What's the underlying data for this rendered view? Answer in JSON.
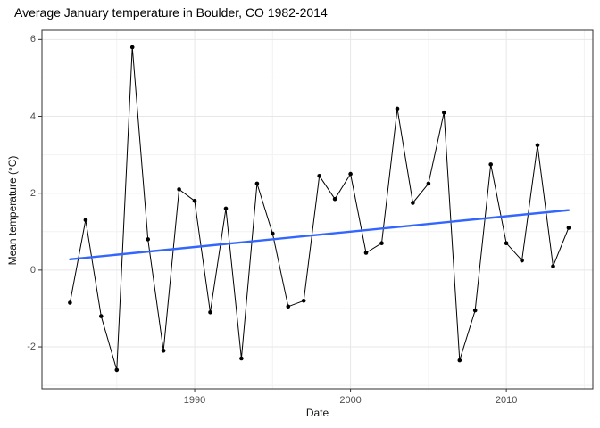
{
  "chart_data": {
    "type": "line",
    "title": "Average January temperature in Boulder, CO 1982-2014",
    "xlabel": "Date",
    "ylabel": "Mean temperature (°C)",
    "x": [
      1982,
      1983,
      1984,
      1985,
      1986,
      1987,
      1988,
      1989,
      1990,
      1991,
      1992,
      1993,
      1994,
      1995,
      1996,
      1997,
      1998,
      1999,
      2000,
      2001,
      2002,
      2003,
      2004,
      2005,
      2006,
      2007,
      2008,
      2009,
      2010,
      2011,
      2012,
      2013,
      2014
    ],
    "values": [
      -0.85,
      1.3,
      -1.2,
      -2.6,
      5.8,
      0.8,
      -2.1,
      2.1,
      1.8,
      -1.1,
      1.6,
      -2.3,
      2.25,
      0.95,
      -0.95,
      -0.8,
      2.45,
      1.85,
      2.5,
      0.45,
      0.7,
      4.2,
      1.75,
      2.25,
      4.1,
      -2.35,
      -1.05,
      2.75,
      0.7,
      0.25,
      3.25,
      0.1,
      1.1
    ],
    "trend_line": {
      "name": "linear-trend",
      "x": [
        1982,
        2014
      ],
      "y": [
        0.28,
        1.56
      ]
    },
    "x_ticks": [
      "1990",
      "2000",
      "2010"
    ],
    "x_tick_values": [
      1990,
      2000,
      2010
    ],
    "x_minor_values": [
      1985,
      1995,
      2005,
      2015
    ],
    "y_ticks": [
      "6",
      "4",
      "2",
      "0",
      "-2"
    ],
    "y_tick_values": [
      6,
      4,
      2,
      0,
      -2
    ],
    "y_minor_values": [
      5,
      3,
      1,
      -1,
      -3
    ],
    "xlim": [
      1980.2,
      2015.55
    ],
    "ylim": [
      -3.09,
      6.24
    ],
    "grid": true,
    "legend": false,
    "colors": {
      "series_line": "#000000",
      "point": "#000000",
      "trend": "#3366FF",
      "grid_major": "#E7E7E7",
      "grid_minor": "#F2F2F2",
      "panel_border": "#2F2F2F",
      "panel_background": "#FFFFFF",
      "tick_mark": "#333333",
      "axis_text": "#4D4D4D",
      "title_text": "#000000"
    }
  }
}
